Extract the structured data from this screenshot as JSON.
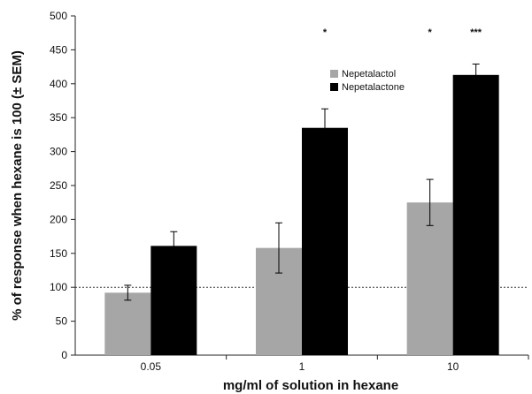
{
  "chart_data": {
    "type": "bar",
    "title": "",
    "xlabel": "mg/ml of solution in hexane",
    "ylabel": "% of response when hexane is 100 (± SEM)",
    "ylim": [
      0,
      500
    ],
    "yticks": [
      "0",
      "50",
      "100",
      "150",
      "200",
      "250",
      "300",
      "350",
      "400",
      "450",
      "500"
    ],
    "categories": [
      "0.05",
      "1",
      "10"
    ],
    "series": [
      {
        "name": "Nepetalactol",
        "color": "#a6a6a6",
        "values": [
          92,
          158,
          225
        ],
        "sem": [
          11,
          37,
          34
        ]
      },
      {
        "name": "Nepetalactone",
        "color": "#000000",
        "values": [
          161,
          335,
          413
        ],
        "sem": [
          21,
          28,
          16
        ]
      }
    ],
    "reference_line": {
      "y": 100,
      "style": "dotted"
    },
    "significance": [
      {
        "category": "1",
        "series": "Nepetalactone",
        "label": "*"
      },
      {
        "category": "10",
        "series": "Nepetalactol",
        "label": "*"
      },
      {
        "category": "10",
        "series": "Nepetalactone",
        "label": "***"
      }
    ],
    "legend_position": "upper-center",
    "grid": false
  }
}
